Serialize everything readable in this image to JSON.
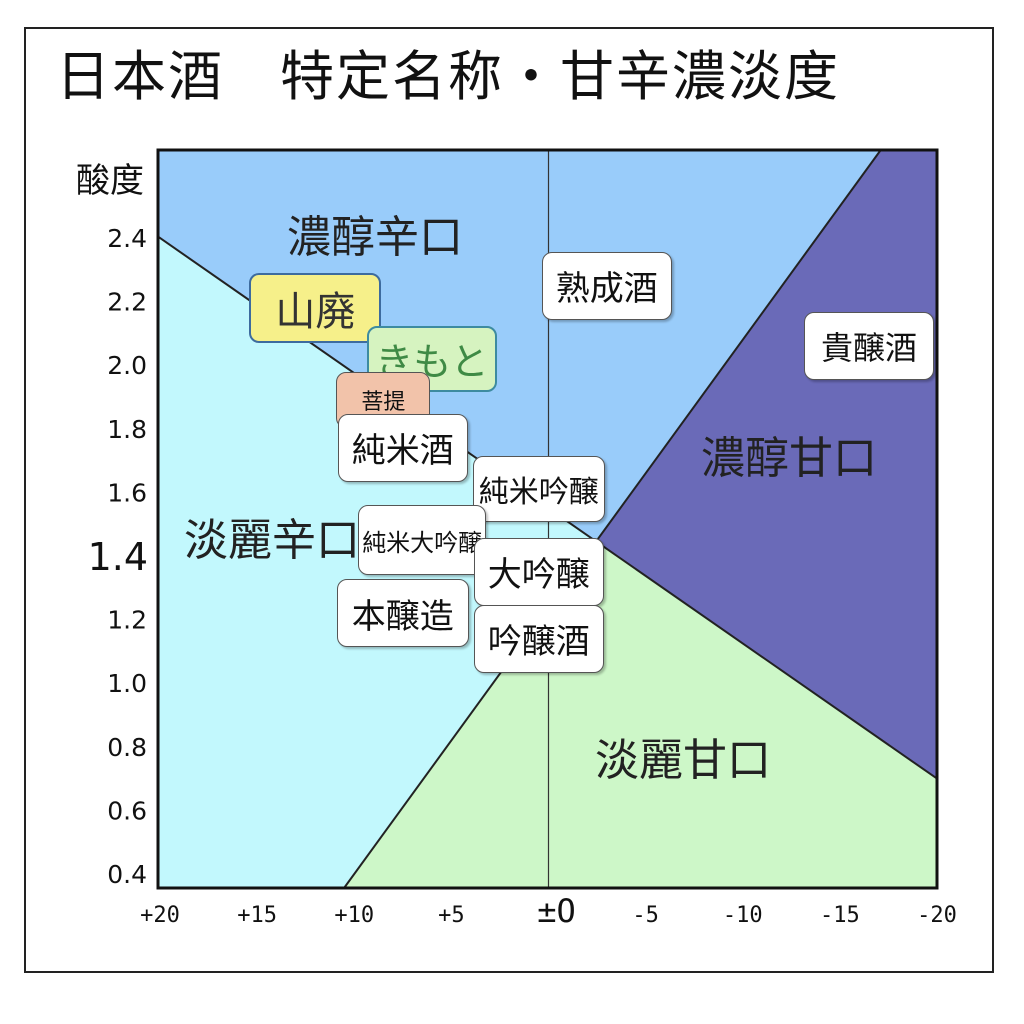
{
  "title": "日本酒　特定名称・甘辛濃淡度",
  "chart_data": {
    "type": "area",
    "title": "日本酒　特定名称・甘辛濃淡度",
    "ylabel": "酸度",
    "xlabel": "",
    "x_range": [
      20,
      -20
    ],
    "y_range": [
      0.4,
      2.5
    ],
    "x_ticks": [
      "+20",
      "+15",
      "+10",
      "+5",
      "±O",
      "-5",
      "-10",
      "-15",
      "-20"
    ],
    "y_ticks": [
      "2.4",
      "2.2",
      "2.0",
      "1.8",
      "1.6",
      "1.4",
      "1.2",
      "1.0",
      "0.8",
      "0.6",
      "0.4"
    ],
    "center_value": 1.4,
    "regions": [
      {
        "name": "濃醇辛口",
        "color": "#99ccfa"
      },
      {
        "name": "淡麗辛口",
        "color": "#c2f8fd"
      },
      {
        "name": "濃醇甘口",
        "color": "#6a6ab8"
      },
      {
        "name": "淡麗甘口",
        "color": "#cdf7c8"
      }
    ],
    "boundaries": [
      {
        "from": [
          20,
          2.4
        ],
        "to": [
          -20,
          0.7
        ]
      },
      {
        "from": [
          10,
          0.4
        ],
        "to": [
          -15,
          2.5
        ]
      }
    ],
    "sake_types": [
      {
        "name": "熟成酒",
        "x": -3,
        "y": 2.25
      },
      {
        "name": "山廃",
        "x": 12,
        "y": 2.18
      },
      {
        "name": "きもと",
        "x": 6,
        "y": 2.02
      },
      {
        "name": "菩提",
        "x": 8.5,
        "y": 1.89
      },
      {
        "name": "純米酒",
        "x": 7.5,
        "y": 1.74
      },
      {
        "name": "純米吟醸",
        "x": 0.5,
        "y": 1.61
      },
      {
        "name": "純米大吟醸",
        "x": 6.5,
        "y": 1.45
      },
      {
        "name": "大吟醸",
        "x": 0.5,
        "y": 1.35
      },
      {
        "name": "本醸造",
        "x": 7.5,
        "y": 1.22
      },
      {
        "name": "吟醸酒",
        "x": 0.5,
        "y": 1.14
      },
      {
        "name": "貴醸酒",
        "x": -16.5,
        "y": 2.06
      }
    ]
  }
}
